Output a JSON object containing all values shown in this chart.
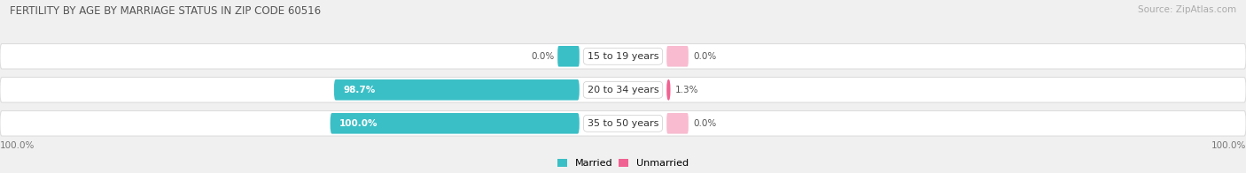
{
  "title": "FERTILITY BY AGE BY MARRIAGE STATUS IN ZIP CODE 60516",
  "source": "Source: ZipAtlas.com",
  "categories": [
    "15 to 19 years",
    "20 to 34 years",
    "35 to 50 years"
  ],
  "married_pct": [
    0.0,
    98.7,
    100.0
  ],
  "unmarried_pct": [
    0.0,
    1.3,
    0.0
  ],
  "married_label": [
    "0.0%",
    "98.7%",
    "100.0%"
  ],
  "unmarried_label": [
    "0.0%",
    "1.3%",
    "0.0%"
  ],
  "married_color": "#3bbfc6",
  "unmarried_color": "#f06292",
  "unmarried_zero_color": "#f8bbd0",
  "bar_bg_color": "#ffffff",
  "row_bg_color": "#eeeeee",
  "figsize": [
    14.06,
    1.96
  ],
  "dpi": 100,
  "legend_married": "Married",
  "legend_unmarried": "Unmarried",
  "bottom_left": "100.0%",
  "bottom_right": "100.0%"
}
